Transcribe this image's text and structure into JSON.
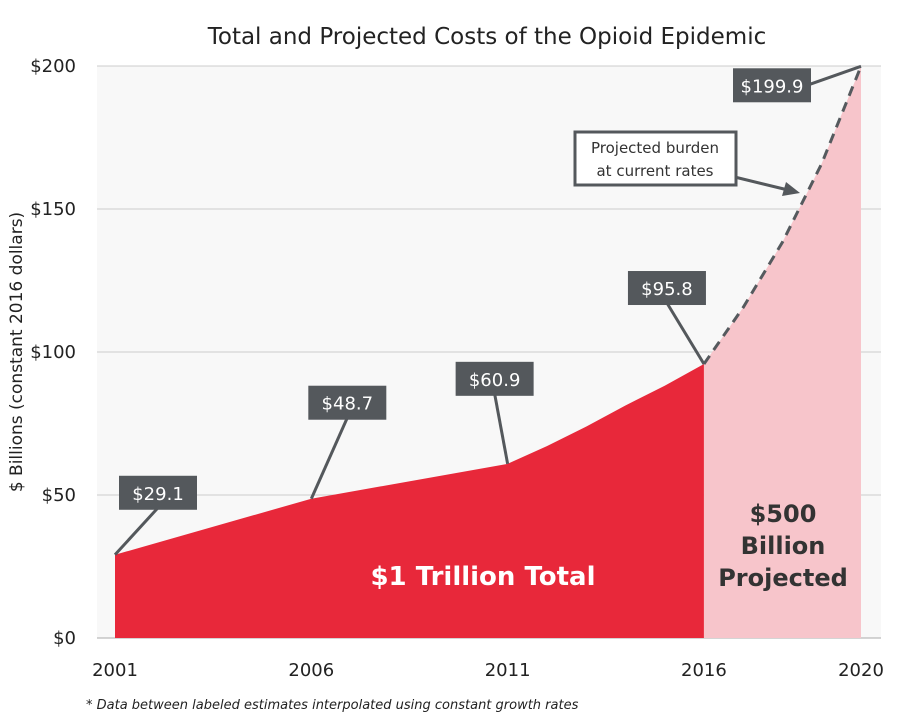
{
  "chart_data": {
    "type": "area",
    "title": "Total and Projected Costs of the Opioid Epidemic",
    "ylabel": "$ Billions (constant 2016 dollars)",
    "xlabel": "",
    "x_ticks": [
      "2001",
      "2006",
      "2011",
      "2016",
      "2020"
    ],
    "y_ticks": [
      "$0",
      "$50",
      "$100",
      "$150",
      "$200"
    ],
    "ylim": [
      0,
      200
    ],
    "xlim": [
      2001,
      2020
    ],
    "grid": true,
    "series": [
      {
        "name": "",
        "kind": "total",
        "color": "#e8283a",
        "x": [
          2001,
          2006,
          2011,
          2012,
          2013,
          2014,
          2015,
          2016
        ],
        "values": [
          29.1,
          48.7,
          60.9,
          67.1,
          73.9,
          81.3,
          88.2,
          95.8
        ]
      },
      {
        "name": "",
        "kind": "projected",
        "color": "#f7c5cb",
        "line_style": "dashed",
        "line_color": "#555a5e",
        "x": [
          2016,
          2017,
          2018,
          2019,
          2020
        ],
        "values": [
          95.8,
          115.6,
          138.4,
          165.9,
          199.9
        ]
      }
    ],
    "callouts": [
      {
        "x": 2001,
        "y": 29.1,
        "text": "$29.1"
      },
      {
        "x": 2006,
        "y": 48.7,
        "text": "$48.7"
      },
      {
        "x": 2011,
        "y": 60.9,
        "text": "$60.9"
      },
      {
        "x": 2016,
        "y": 95.8,
        "text": "$95.8"
      },
      {
        "x": 2020,
        "y": 199.9,
        "text": "$199.9"
      }
    ],
    "annotations": {
      "projected_note_line1": "Projected burden",
      "projected_note_line2": "at current rates",
      "total_label": "$1 Trillion Total",
      "projected_label_line1": "$500",
      "projected_label_line2": "Billion",
      "projected_label_line3": "Projected"
    },
    "footnote": "* Data between labeled estimates interpolated using constant growth rates",
    "colors": {
      "plot_bg": "#f8f8f8",
      "grid": "#cccccc",
      "callout_bg": "#54585c",
      "total_area": "#e8283a",
      "projected_area": "#f7c5cb"
    }
  }
}
